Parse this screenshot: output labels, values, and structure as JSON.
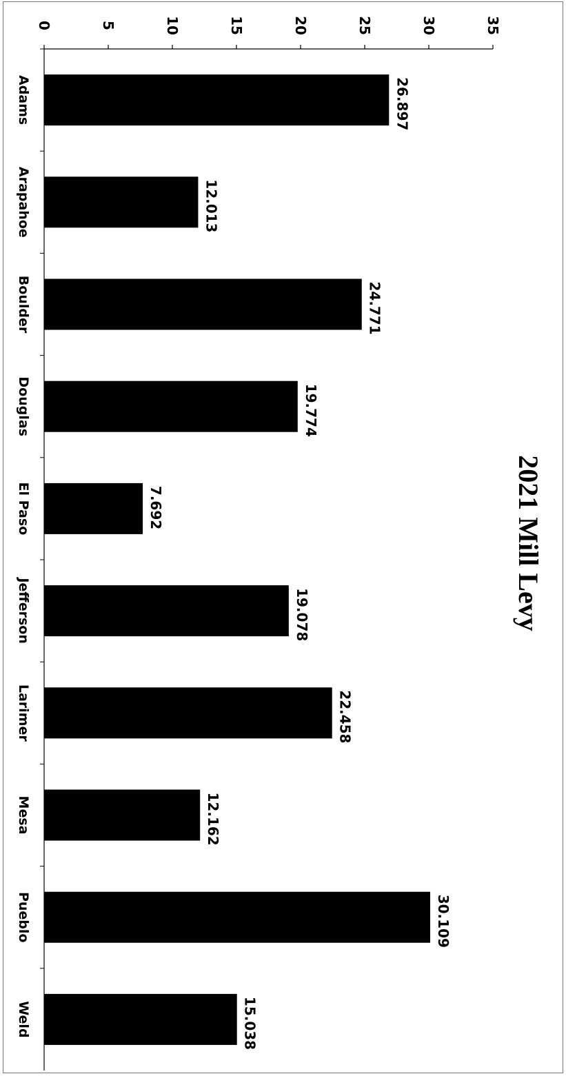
{
  "chart_data": {
    "type": "bar",
    "orientation": "vertical bars, page rotated 90° clockwise",
    "title": "2021 Mill Levy",
    "categories": [
      "Adams",
      "Arapahoe",
      "Boulder",
      "Douglas",
      "El Paso",
      "Jefferson",
      "Larimer",
      "Mesa",
      "Pueblo",
      "Weld"
    ],
    "values": [
      26.897,
      12.013,
      24.771,
      19.774,
      7.692,
      19.078,
      22.458,
      12.162,
      30.109,
      15.038
    ],
    "data_labels": [
      "26.897",
      "12.013",
      "24.771",
      "19.774",
      "7.692",
      "19.078",
      "22.458",
      "12.162",
      "30.109",
      "15.038"
    ],
    "ylim": [
      0,
      35
    ],
    "y_ticks": [
      "0",
      "5",
      "10",
      "15",
      "20",
      "25",
      "30",
      "35"
    ],
    "xlabel": "",
    "ylabel": "",
    "grid": false,
    "legend": "none",
    "bar_color": "#000000"
  }
}
